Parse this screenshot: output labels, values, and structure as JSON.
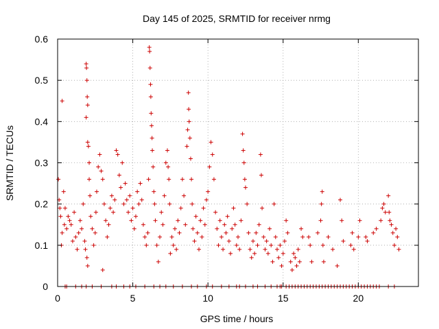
{
  "chart_data": {
    "type": "scatter",
    "title": "Day 145 of 2025, SRMTID for receiver nrmg",
    "xlabel": "GPS time / hours",
    "ylabel": "SRMTID / TECUs",
    "xlim": [
      0,
      24
    ],
    "ylim": [
      0,
      0.6
    ],
    "x_ticks": [
      0,
      5,
      10,
      15,
      20
    ],
    "x_tick_labels": [
      "0",
      "5",
      "10",
      "15",
      "20"
    ],
    "y_ticks": [
      0,
      0.1,
      0.2,
      0.3,
      0.4,
      0.5,
      0.6
    ],
    "y_tick_labels": [
      "0",
      "0.1",
      "0.2",
      "0.3",
      "0.4",
      "0.5",
      "0.6"
    ],
    "grid": true,
    "marker": "+",
    "marker_color": "#cc0000",
    "series": [
      {
        "name": "SRMTID",
        "points": [
          [
            0.05,
            0.26
          ],
          [
            0.1,
            0.21
          ],
          [
            0.15,
            0.19
          ],
          [
            0.2,
            0.17
          ],
          [
            0.25,
            0.1
          ],
          [
            0.3,
            0.45
          ],
          [
            0.3,
            0.13
          ],
          [
            0.4,
            0.23
          ],
          [
            0.45,
            0.15
          ],
          [
            0.5,
            0.19
          ],
          [
            0.6,
            0.14
          ],
          [
            0.7,
            0.17
          ],
          [
            0.8,
            0.16
          ],
          [
            0.9,
            0.15
          ],
          [
            1.0,
            0.11
          ],
          [
            1.1,
            0.18
          ],
          [
            1.2,
            0.12
          ],
          [
            1.3,
            0.09
          ],
          [
            1.4,
            0.13
          ],
          [
            1.5,
            0.16
          ],
          [
            1.6,
            0.14
          ],
          [
            1.7,
            0.2
          ],
          [
            1.8,
            0.11
          ],
          [
            1.85,
            0.09
          ],
          [
            1.9,
            0.54
          ],
          [
            1.92,
            0.53
          ],
          [
            1.95,
            0.5
          ],
          [
            1.97,
            0.46
          ],
          [
            2.0,
            0.44
          ],
          [
            1.9,
            0.41
          ],
          [
            2.0,
            0.35
          ],
          [
            2.05,
            0.34
          ],
          [
            2.1,
            0.3
          ],
          [
            2.1,
            0.26
          ],
          [
            2.15,
            0.22
          ],
          [
            2.2,
            0.17
          ],
          [
            1.95,
            0.07
          ],
          [
            2.0,
            0.05
          ],
          [
            2.3,
            0.14
          ],
          [
            2.4,
            0.1
          ],
          [
            2.5,
            0.13
          ],
          [
            2.55,
            0.18
          ],
          [
            2.6,
            0.23
          ],
          [
            2.7,
            0.29
          ],
          [
            2.8,
            0.32
          ],
          [
            2.9,
            0.28
          ],
          [
            3.0,
            0.26
          ],
          [
            3.1,
            0.2
          ],
          [
            3.0,
            0.04
          ],
          [
            3.2,
            0.16
          ],
          [
            3.3,
            0.12
          ],
          [
            3.4,
            0.15
          ],
          [
            3.5,
            0.19
          ],
          [
            3.6,
            0.22
          ],
          [
            3.7,
            0.18
          ],
          [
            3.8,
            0.21
          ],
          [
            3.9,
            0.33
          ],
          [
            4.0,
            0.32
          ],
          [
            4.1,
            0.27
          ],
          [
            4.2,
            0.24
          ],
          [
            4.3,
            0.3
          ],
          [
            4.4,
            0.2
          ],
          [
            4.5,
            0.25
          ],
          [
            4.6,
            0.21
          ],
          [
            4.7,
            0.18
          ],
          [
            4.8,
            0.22
          ],
          [
            4.9,
            0.16
          ],
          [
            5.0,
            0.19
          ],
          [
            5.1,
            0.14
          ],
          [
            5.2,
            0.17
          ],
          [
            5.3,
            0.23
          ],
          [
            5.4,
            0.2
          ],
          [
            5.5,
            0.25
          ],
          [
            5.6,
            0.21
          ],
          [
            5.7,
            0.15
          ],
          [
            5.8,
            0.12
          ],
          [
            5.9,
            0.1
          ],
          [
            6.0,
            0.13
          ],
          [
            6.05,
            0.26
          ],
          [
            6.1,
            0.58
          ],
          [
            6.12,
            0.57
          ],
          [
            6.15,
            0.53
          ],
          [
            6.18,
            0.49
          ],
          [
            6.2,
            0.46
          ],
          [
            6.22,
            0.42
          ],
          [
            6.25,
            0.39
          ],
          [
            6.28,
            0.36
          ],
          [
            6.3,
            0.33
          ],
          [
            6.35,
            0.29
          ],
          [
            6.4,
            0.23
          ],
          [
            6.45,
            0.2
          ],
          [
            6.5,
            0.16
          ],
          [
            6.6,
            0.1
          ],
          [
            6.7,
            0.06
          ],
          [
            6.8,
            0.12
          ],
          [
            6.9,
            0.18
          ],
          [
            7.0,
            0.15
          ],
          [
            7.1,
            0.22
          ],
          [
            7.2,
            0.3
          ],
          [
            7.3,
            0.33
          ],
          [
            7.35,
            0.29
          ],
          [
            7.4,
            0.26
          ],
          [
            7.45,
            0.2
          ],
          [
            7.5,
            0.08
          ],
          [
            7.6,
            0.12
          ],
          [
            7.7,
            0.1
          ],
          [
            7.8,
            0.14
          ],
          [
            7.9,
            0.09
          ],
          [
            8.0,
            0.16
          ],
          [
            8.1,
            0.13
          ],
          [
            8.2,
            0.19
          ],
          [
            8.3,
            0.26
          ],
          [
            8.4,
            0.22
          ],
          [
            8.5,
            0.15
          ],
          [
            8.6,
            0.34
          ],
          [
            8.65,
            0.38
          ],
          [
            8.7,
            0.47
          ],
          [
            8.72,
            0.43
          ],
          [
            8.75,
            0.4
          ],
          [
            8.8,
            0.36
          ],
          [
            8.85,
            0.31
          ],
          [
            8.9,
            0.26
          ],
          [
            8.95,
            0.2
          ],
          [
            9.0,
            0.14
          ],
          [
            9.1,
            0.11
          ],
          [
            9.2,
            0.17
          ],
          [
            9.3,
            0.13
          ],
          [
            9.4,
            0.09
          ],
          [
            9.5,
            0.16
          ],
          [
            9.6,
            0.12
          ],
          [
            9.7,
            0.19
          ],
          [
            9.8,
            0.15
          ],
          [
            9.9,
            0.21
          ],
          [
            10.0,
            0.23
          ],
          [
            10.1,
            0.29
          ],
          [
            10.2,
            0.35
          ],
          [
            10.3,
            0.32
          ],
          [
            10.4,
            0.26
          ],
          [
            10.5,
            0.18
          ],
          [
            10.6,
            0.14
          ],
          [
            10.7,
            0.1
          ],
          [
            10.8,
            0.16
          ],
          [
            10.9,
            0.12
          ],
          [
            11.0,
            0.09
          ],
          [
            11.1,
            0.15
          ],
          [
            11.2,
            0.13
          ],
          [
            11.3,
            0.17
          ],
          [
            11.4,
            0.11
          ],
          [
            11.5,
            0.08
          ],
          [
            11.6,
            0.14
          ],
          [
            11.7,
            0.19
          ],
          [
            11.8,
            0.15
          ],
          [
            11.9,
            0.1
          ],
          [
            12.0,
            0.12
          ],
          [
            12.1,
            0.09
          ],
          [
            12.2,
            0.16
          ],
          [
            12.3,
            0.37
          ],
          [
            12.35,
            0.33
          ],
          [
            12.4,
            0.3
          ],
          [
            12.45,
            0.26
          ],
          [
            12.5,
            0.24
          ],
          [
            12.6,
            0.2
          ],
          [
            12.7,
            0.13
          ],
          [
            12.8,
            0.09
          ],
          [
            12.9,
            0.07
          ],
          [
            13.0,
            0.11
          ],
          [
            13.1,
            0.08
          ],
          [
            13.2,
            0.13
          ],
          [
            13.3,
            0.1
          ],
          [
            13.4,
            0.15
          ],
          [
            13.5,
            0.32
          ],
          [
            13.55,
            0.27
          ],
          [
            13.6,
            0.19
          ],
          [
            13.7,
            0.12
          ],
          [
            13.8,
            0.09
          ],
          [
            13.9,
            0.11
          ],
          [
            14.0,
            0.08
          ],
          [
            14.1,
            0.14
          ],
          [
            14.2,
            0.1
          ],
          [
            14.3,
            0.06
          ],
          [
            14.4,
            0.2
          ],
          [
            14.5,
            0.12
          ],
          [
            14.6,
            0.09
          ],
          [
            14.7,
            0.07
          ],
          [
            14.8,
            0.1
          ],
          [
            14.9,
            0.05
          ],
          [
            15.0,
            0.08
          ],
          [
            15.1,
            0.11
          ],
          [
            15.2,
            0.16
          ],
          [
            15.3,
            0.13
          ],
          [
            15.5,
            0.06
          ],
          [
            15.6,
            0.04
          ],
          [
            15.7,
            0.08
          ],
          [
            15.8,
            0.07
          ],
          [
            15.9,
            0.05
          ],
          [
            16.0,
            0.09
          ],
          [
            16.1,
            0.06
          ],
          [
            16.2,
            0.14
          ],
          [
            16.3,
            0.12
          ],
          [
            16.7,
            0.12
          ],
          [
            16.8,
            0.1
          ],
          [
            16.9,
            0.06
          ],
          [
            17.3,
            0.13
          ],
          [
            17.5,
            0.16
          ],
          [
            17.55,
            0.2
          ],
          [
            17.6,
            0.23
          ],
          [
            17.65,
            0.1
          ],
          [
            17.7,
            0.06
          ],
          [
            18.0,
            0.12
          ],
          [
            18.3,
            0.09
          ],
          [
            18.6,
            0.05
          ],
          [
            18.8,
            0.21
          ],
          [
            18.9,
            0.16
          ],
          [
            19.0,
            0.11
          ],
          [
            19.5,
            0.1
          ],
          [
            19.6,
            0.13
          ],
          [
            19.7,
            0.09
          ],
          [
            20.0,
            0.12
          ],
          [
            20.1,
            0.16
          ],
          [
            20.5,
            0.12
          ],
          [
            20.6,
            0.11
          ],
          [
            21.0,
            0.13
          ],
          [
            21.2,
            0.14
          ],
          [
            21.5,
            0.16
          ],
          [
            21.6,
            0.19
          ],
          [
            21.7,
            0.2
          ],
          [
            21.8,
            0.18
          ],
          [
            22.0,
            0.22
          ],
          [
            22.05,
            0.18
          ],
          [
            22.1,
            0.16
          ],
          [
            22.2,
            0.15
          ],
          [
            22.3,
            0.13
          ],
          [
            22.4,
            0.1
          ],
          [
            22.5,
            0.14
          ],
          [
            22.6,
            0.12
          ],
          [
            22.7,
            0.09
          ]
        ]
      }
    ],
    "zero_points_x": [
      0.5,
      0.6,
      1.2,
      1.6,
      1.9,
      2.3,
      2.9,
      3.6,
      3.9,
      4.4,
      4.8,
      5.2,
      5.8,
      6.4,
      6.8,
      7.2,
      7.7,
      8.3,
      8.9,
      9.3,
      9.9,
      10.3,
      10.9,
      11.4,
      11.9,
      12.1,
      12.5,
      13.0,
      13.3,
      13.8,
      14.2,
      14.6,
      14.8,
      14.9,
      15.2,
      15.4,
      15.6,
      15.8,
      16.0,
      16.2,
      16.4,
      16.6,
      16.8,
      17.0,
      17.2,
      17.4,
      17.6,
      17.8,
      18.0,
      18.2,
      18.4,
      18.6,
      18.8,
      19.0,
      19.2,
      19.4,
      19.6,
      19.8,
      20.0,
      20.2,
      20.4,
      20.6,
      20.8,
      21.0,
      21.2,
      21.4,
      22.0,
      22.4
    ]
  }
}
